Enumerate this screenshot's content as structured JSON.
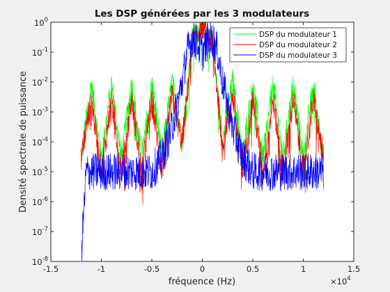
{
  "chart_data": {
    "type": "line",
    "title": "Les DSP générées par les 3 modulateurs",
    "xlabel": "fréquence (Hz)",
    "ylabel": "Densité spectrale de puissance",
    "x_multiplier_label": "×10",
    "x_multiplier_exp": "4",
    "xlim": [
      -15000,
      15000
    ],
    "ylim": [
      1e-08,
      1
    ],
    "yscale": "log",
    "x_tick_values": [
      -15000,
      -10000,
      -5000,
      0,
      5000,
      10000,
      15000
    ],
    "x_tick_labels": [
      "-1.5",
      "-1",
      "-0.5",
      "0",
      "0.5",
      "1",
      "1.5"
    ],
    "y_tick_values": [
      1e-08,
      1e-07,
      1e-06,
      1e-05,
      0.0001,
      0.001,
      0.01,
      0.1,
      1
    ],
    "y_tick_base": "10",
    "y_tick_exps": [
      "-8",
      "-7",
      "-6",
      "-5",
      "-4",
      "-3",
      "-2",
      "-1",
      "0"
    ],
    "legend_position": "top-right",
    "grid": false,
    "series": [
      {
        "name": "DSP du modulateur 1",
        "color": "#00ff00",
        "lobe_width_hz": 2000,
        "range_hz": [
          -12000,
          12000
        ],
        "x": [
          -12000,
          -11000,
          -10000,
          -9000,
          -8000,
          -7000,
          -6000,
          -5000,
          -4000,
          -3000,
          -2000,
          -1000,
          0,
          1000,
          2000,
          3000,
          4000,
          5000,
          6000,
          7000,
          8000,
          9000,
          10000,
          11000,
          12000
        ],
        "y": [
          3e-05,
          0.01,
          3e-05,
          0.01,
          3e-05,
          0.01,
          3e-05,
          0.01,
          4e-05,
          0.012,
          0.0001,
          0.3,
          1,
          0.3,
          0.0001,
          0.012,
          4e-05,
          0.01,
          3e-05,
          0.01,
          3e-05,
          0.01,
          3e-05,
          0.01,
          3e-05
        ]
      },
      {
        "name": "DSP du modulateur 2",
        "color": "#ff0000",
        "lobe_width_hz": 2000,
        "range_hz": [
          -12000,
          12000
        ],
        "x": [
          -12000,
          -11000,
          -10000,
          -9000,
          -8000,
          -7000,
          -6000,
          -5000,
          -4000,
          -3000,
          -2000,
          -1000,
          0,
          1000,
          2000,
          3000,
          4000,
          5000,
          6000,
          7000,
          8000,
          9000,
          10000,
          11000,
          12000
        ],
        "y": [
          3e-05,
          0.003,
          1e-05,
          0.003,
          1e-05,
          0.003,
          1e-05,
          0.003,
          1e-05,
          0.004,
          0.0001,
          0.2,
          1,
          0.2,
          0.0001,
          0.004,
          1e-05,
          0.003,
          1e-05,
          0.003,
          1e-05,
          0.003,
          1e-05,
          0.003,
          3e-05
        ]
      },
      {
        "name": "DSP du modulateur 3",
        "color": "#0000ff",
        "range_hz": [
          -12000,
          12000
        ],
        "x": [
          -12000,
          -11500,
          -10000,
          -8000,
          -6000,
          -5000,
          -4000,
          -3000,
          -2000,
          -1500,
          -1000,
          -500,
          0,
          500,
          1000,
          1500,
          2000,
          3000,
          4000,
          5000,
          6000,
          8000,
          10000,
          11500,
          12000
        ],
        "y": [
          1.5e-08,
          1e-05,
          1e-05,
          1e-05,
          1e-05,
          1e-05,
          3e-05,
          0.0003,
          0.01,
          0.1,
          0.3,
          0.2,
          0.1,
          0.2,
          0.3,
          0.1,
          0.01,
          0.0003,
          3e-05,
          1e-05,
          1e-05,
          1e-05,
          1e-05,
          1e-05,
          1e-05
        ]
      }
    ]
  }
}
